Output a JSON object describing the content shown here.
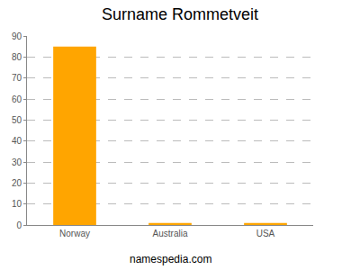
{
  "chart_data": {
    "type": "bar",
    "title": "Surname Rommetveit",
    "categories": [
      "Norway",
      "Australia",
      "USA"
    ],
    "values": [
      85,
      1,
      1
    ],
    "color": "#ffa500",
    "ylim": [
      0,
      90
    ],
    "yticks": [
      0,
      10,
      20,
      30,
      40,
      50,
      60,
      70,
      80,
      90
    ],
    "grid": true,
    "annotations": [
      "namespedia.com"
    ]
  }
}
